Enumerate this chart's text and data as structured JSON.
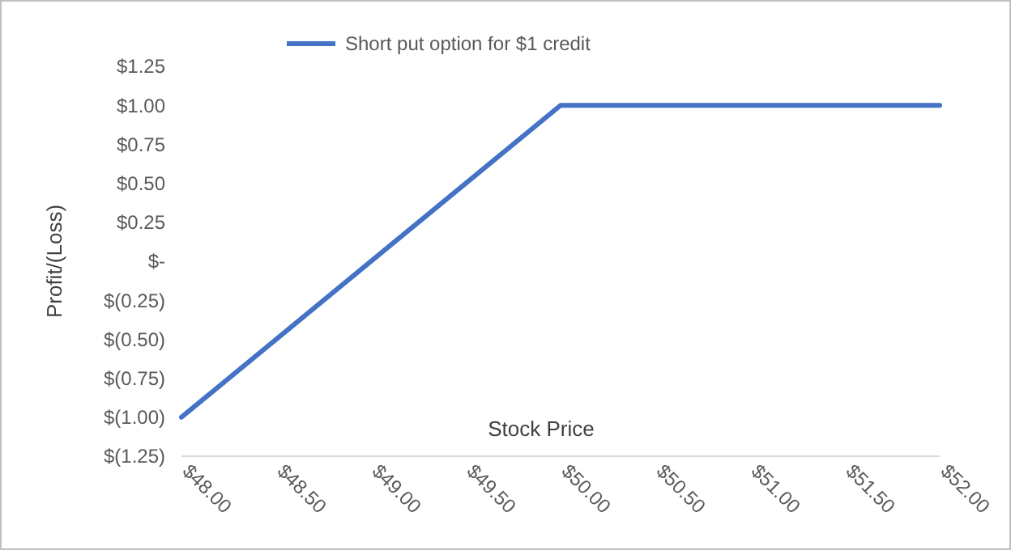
{
  "chart_data": {
    "type": "line",
    "xlabel": "Stock Price",
    "ylabel": "Profit/(Loss)",
    "legend": "top",
    "series": [
      {
        "name": "Short put option for $1 credit",
        "color": "#4472c4",
        "x": [
          48,
          50,
          52
        ],
        "values": [
          -1,
          1,
          1
        ]
      }
    ],
    "xlim": [
      48,
      52
    ],
    "xticks": [
      {
        "value": 48,
        "label": "$48.00"
      },
      {
        "value": 48.5,
        "label": "$48.50"
      },
      {
        "value": 49,
        "label": "$49.00"
      },
      {
        "value": 49.5,
        "label": "$49.50"
      },
      {
        "value": 50,
        "label": "$50.00"
      },
      {
        "value": 50.5,
        "label": "$50.50"
      },
      {
        "value": 51,
        "label": "$51.00"
      },
      {
        "value": 51.5,
        "label": "$51.50"
      },
      {
        "value": 52,
        "label": "$52.00"
      }
    ],
    "ylim": [
      -1.25,
      1.25
    ],
    "yticks": [
      {
        "value": 1.25,
        "label": "$1.25"
      },
      {
        "value": 1,
        "label": "$1.00"
      },
      {
        "value": 0.75,
        "label": "$0.75"
      },
      {
        "value": 0.5,
        "label": "$0.50"
      },
      {
        "value": 0.25,
        "label": "$0.25"
      },
      {
        "value": 0,
        "label": "$-"
      },
      {
        "value": -0.25,
        "label": "$(0.25)"
      },
      {
        "value": -0.5,
        "label": "$(0.50)"
      },
      {
        "value": -0.75,
        "label": "$(0.75)"
      },
      {
        "value": -1,
        "label": "$(1.00)"
      },
      {
        "value": -1.25,
        "label": "$(1.25)"
      }
    ],
    "grid": false,
    "marker": "none",
    "line_style": "solid"
  }
}
